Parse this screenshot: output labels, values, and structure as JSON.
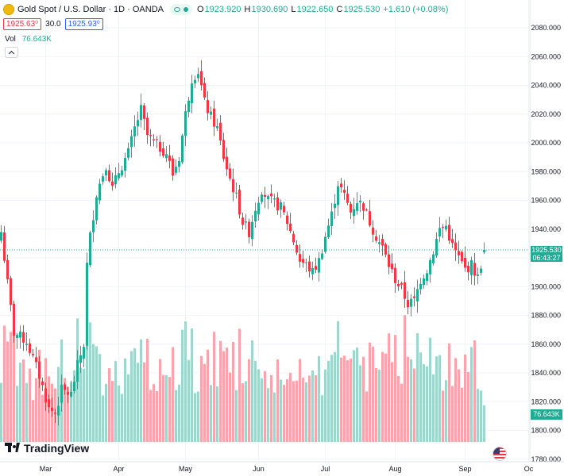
{
  "header": {
    "title": "Gold Spot / U.S. Dollar · 1D · OANDA",
    "o_label": "O",
    "o_value": "1923.920",
    "h_label": "H",
    "h_value": "1930.690",
    "l_label": "L",
    "l_value": "1922.650",
    "c_label": "C",
    "c_value": "1925.530",
    "change": "+1.610 (+0.08%)"
  },
  "trade": {
    "sell": "1925.63⁰",
    "spread": "30.0",
    "buy": "1925.93⁰"
  },
  "volume_legend": {
    "label": "Vol",
    "value": "76.643K"
  },
  "price_scale": {
    "ticks": [
      "2080.000",
      "2060.000",
      "2040.000",
      "2020.000",
      "2000.000",
      "1980.000",
      "1960.000",
      "1940.000",
      "1920.000",
      "1900.000",
      "1880.000",
      "1860.000",
      "1840.000",
      "1820.000",
      "1800.000",
      "1780.000"
    ],
    "last_price": "1925.530",
    "countdown": "06:43:27",
    "volume_tag": "76.643K"
  },
  "time_scale": {
    "labels": [
      "Mar",
      "Apr",
      "May",
      "Jun",
      "Jul",
      "Aug",
      "Sep",
      "Oc"
    ]
  },
  "brand": {
    "name": "TradingView"
  },
  "colors": {
    "up": "#22ab94",
    "down": "#f23645",
    "up_volume": "#9ed6ce",
    "down_volume": "#f5a6ab"
  },
  "chart_data": {
    "type": "candlestick",
    "title": "Gold Spot / U.S. Dollar · 1D · OANDA",
    "interval": "1D",
    "ylim": [
      1775,
      2092
    ],
    "grid": true,
    "legend": "top-left",
    "month_ticks": [
      {
        "label": "Mar",
        "index": 14
      },
      {
        "label": "Apr",
        "index": 37
      },
      {
        "label": "May",
        "index": 58
      },
      {
        "label": "Jun",
        "index": 81
      },
      {
        "label": "Jul",
        "index": 102
      },
      {
        "label": "Aug",
        "index": 124
      },
      {
        "label": "Sep",
        "index": 146
      },
      {
        "label": "Oc",
        "index": 166
      }
    ],
    "close_anchors": [
      [
        0,
        1938
      ],
      [
        2,
        1902
      ],
      [
        4,
        1868
      ],
      [
        8,
        1862
      ],
      [
        12,
        1838
      ],
      [
        15,
        1815
      ],
      [
        17,
        1812
      ],
      [
        19,
        1828
      ],
      [
        22,
        1825
      ],
      [
        24,
        1845
      ],
      [
        26,
        1860
      ],
      [
        27,
        1915
      ],
      [
        28,
        1935
      ],
      [
        30,
        1965
      ],
      [
        33,
        1985
      ],
      [
        35,
        1968
      ],
      [
        37,
        1980
      ],
      [
        40,
        1993
      ],
      [
        42,
        2010
      ],
      [
        44,
        2023
      ],
      [
        46,
        2005
      ],
      [
        48,
        2000
      ],
      [
        52,
        1993
      ],
      [
        54,
        1978
      ],
      [
        56,
        1990
      ],
      [
        58,
        2020
      ],
      [
        60,
        2045
      ],
      [
        62,
        2050
      ],
      [
        64,
        2028
      ],
      [
        66,
        2018
      ],
      [
        68,
        2010
      ],
      [
        70,
        1990
      ],
      [
        72,
        1975
      ],
      [
        74,
        1962
      ],
      [
        76,
        1945
      ],
      [
        78,
        1938
      ],
      [
        80,
        1955
      ],
      [
        82,
        1968
      ],
      [
        84,
        1960
      ],
      [
        86,
        1958
      ],
      [
        88,
        1955
      ],
      [
        90,
        1945
      ],
      [
        92,
        1932
      ],
      [
        94,
        1918
      ],
      [
        96,
        1915
      ],
      [
        98,
        1910
      ],
      [
        100,
        1918
      ],
      [
        102,
        1935
      ],
      [
        104,
        1950
      ],
      [
        106,
        1972
      ],
      [
        108,
        1963
      ],
      [
        110,
        1952
      ],
      [
        112,
        1960
      ],
      [
        114,
        1956
      ],
      [
        116,
        1945
      ],
      [
        118,
        1935
      ],
      [
        120,
        1927
      ],
      [
        122,
        1915
      ],
      [
        124,
        1905
      ],
      [
        126,
        1898
      ],
      [
        128,
        1888
      ],
      [
        130,
        1890
      ],
      [
        132,
        1905
      ],
      [
        134,
        1912
      ],
      [
        136,
        1925
      ],
      [
        138,
        1940
      ],
      [
        140,
        1942
      ],
      [
        142,
        1928
      ],
      [
        144,
        1920
      ],
      [
        146,
        1912
      ],
      [
        148,
        1915
      ],
      [
        150,
        1906
      ],
      [
        152,
        1925.53
      ]
    ],
    "volume_range": [
      0,
      300000
    ],
    "last_volume": 76643
  }
}
